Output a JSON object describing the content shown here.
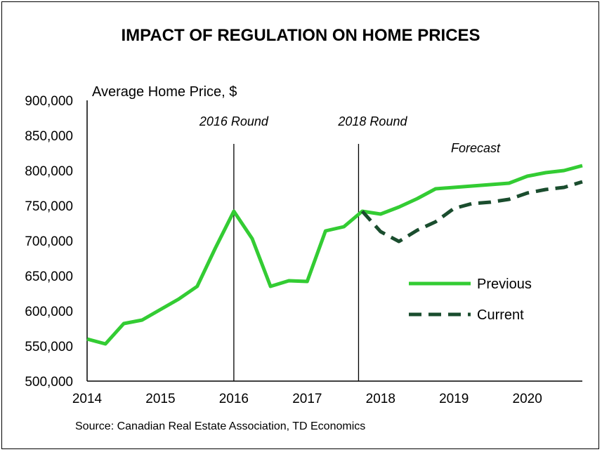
{
  "chart_data": {
    "type": "line",
    "title": "IMPACT OF REGULATION ON HOME PRICES",
    "ylabel": "Average Home Price, $",
    "source": "Source: Canadian Real Estate Association, TD Economics",
    "ylim": [
      500000,
      900000
    ],
    "xlim": [
      2014,
      2020.75
    ],
    "yticks": [
      "500,000",
      "550,000",
      "600,000",
      "650,000",
      "700,000",
      "750,000",
      "800,000",
      "850,000",
      "900,000"
    ],
    "ytick_values": [
      500000,
      550000,
      600000,
      650000,
      700000,
      750000,
      800000,
      850000,
      900000
    ],
    "xticks": [
      "2014",
      "2015",
      "2016",
      "2017",
      "2018",
      "2019",
      "2020"
    ],
    "xtick_values": [
      2014,
      2015,
      2016,
      2017,
      2018,
      2019,
      2020
    ],
    "grid": false,
    "legend_position": "right",
    "annotations": [
      {
        "text": "2016 Round",
        "x": 2016
      },
      {
        "text": "2018 Round",
        "x": 2017.7
      },
      {
        "text": "Forecast",
        "x": 2019.3,
        "y": 830000
      }
    ],
    "vlines": [
      2016,
      2017.7
    ],
    "series": [
      {
        "name": "Previous",
        "style": "solid",
        "color": "#33cc33",
        "x": [
          2014,
          2014.25,
          2014.5,
          2014.75,
          2015,
          2015.25,
          2015.5,
          2015.75,
          2016,
          2016.25,
          2016.5,
          2016.75,
          2017,
          2017.25,
          2017.5,
          2017.75,
          2018,
          2018.25,
          2018.5,
          2018.75,
          2019,
          2019.25,
          2019.5,
          2019.75,
          2020,
          2020.25,
          2020.5,
          2020.75
        ],
        "values": [
          560000,
          553000,
          582000,
          587000,
          602000,
          617000,
          635000,
          690000,
          742000,
          703000,
          635000,
          643000,
          642000,
          714000,
          720000,
          742000,
          738000,
          748000,
          760000,
          774000,
          776000,
          778000,
          780000,
          782000,
          792000,
          797000,
          800000,
          807000
        ]
      },
      {
        "name": "Current",
        "style": "dashed",
        "color": "#1a4d2e",
        "x": [
          2017.75,
          2018,
          2018.25,
          2018.5,
          2018.75,
          2019,
          2019.25,
          2019.5,
          2019.75,
          2020,
          2020.25,
          2020.5,
          2020.75
        ],
        "values": [
          742000,
          713000,
          699000,
          715000,
          727000,
          746000,
          753000,
          755000,
          759000,
          768000,
          773000,
          776000,
          784000
        ]
      }
    ]
  }
}
